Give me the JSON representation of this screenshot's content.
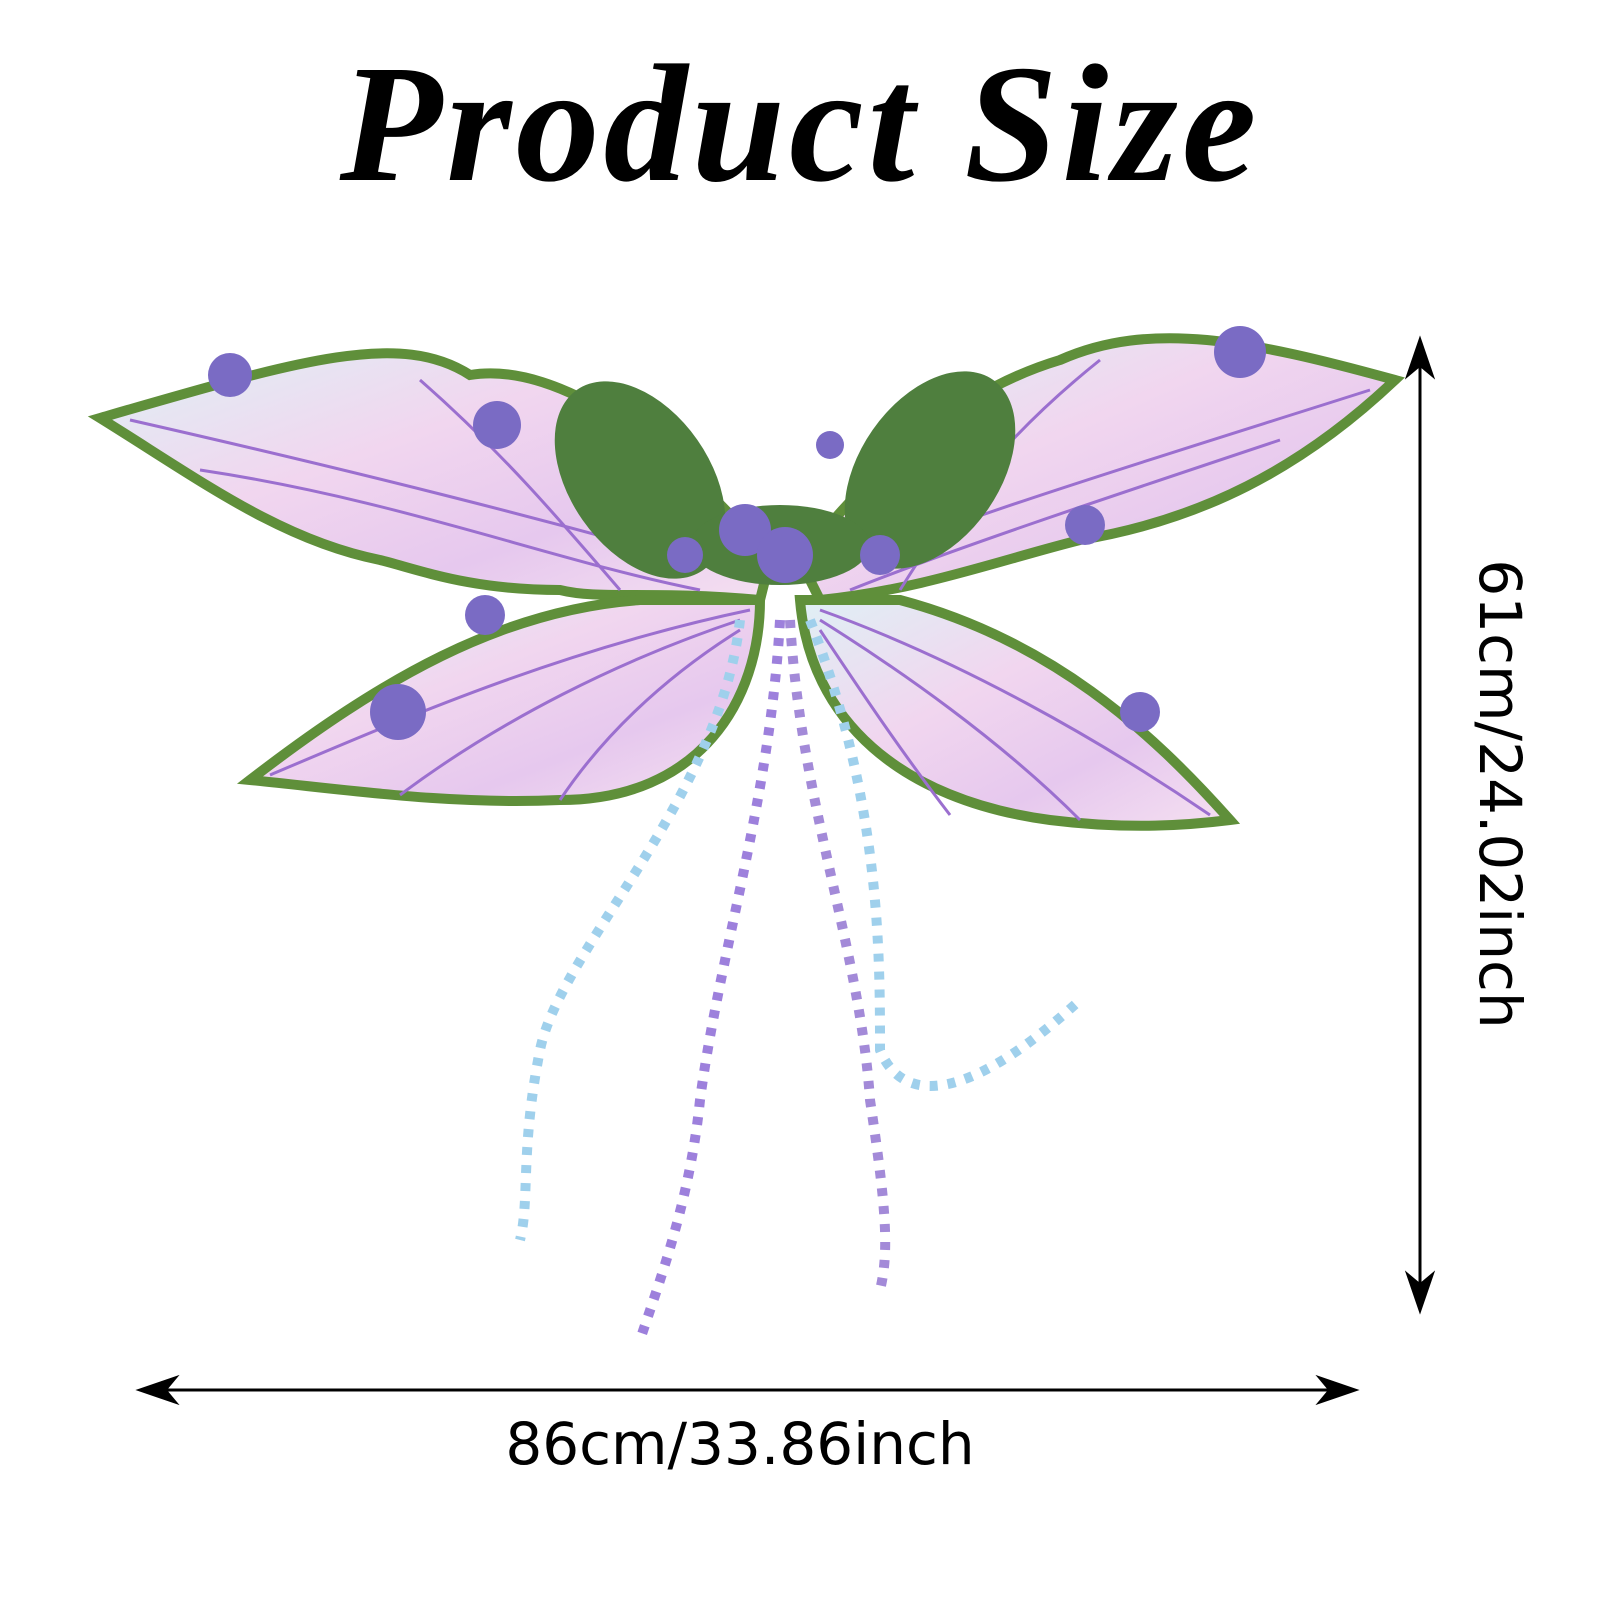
{
  "header": {
    "title": "Product Size"
  },
  "dimensions": {
    "width": "86cm/33.86inch",
    "height": "61cm/24.02inch"
  }
}
